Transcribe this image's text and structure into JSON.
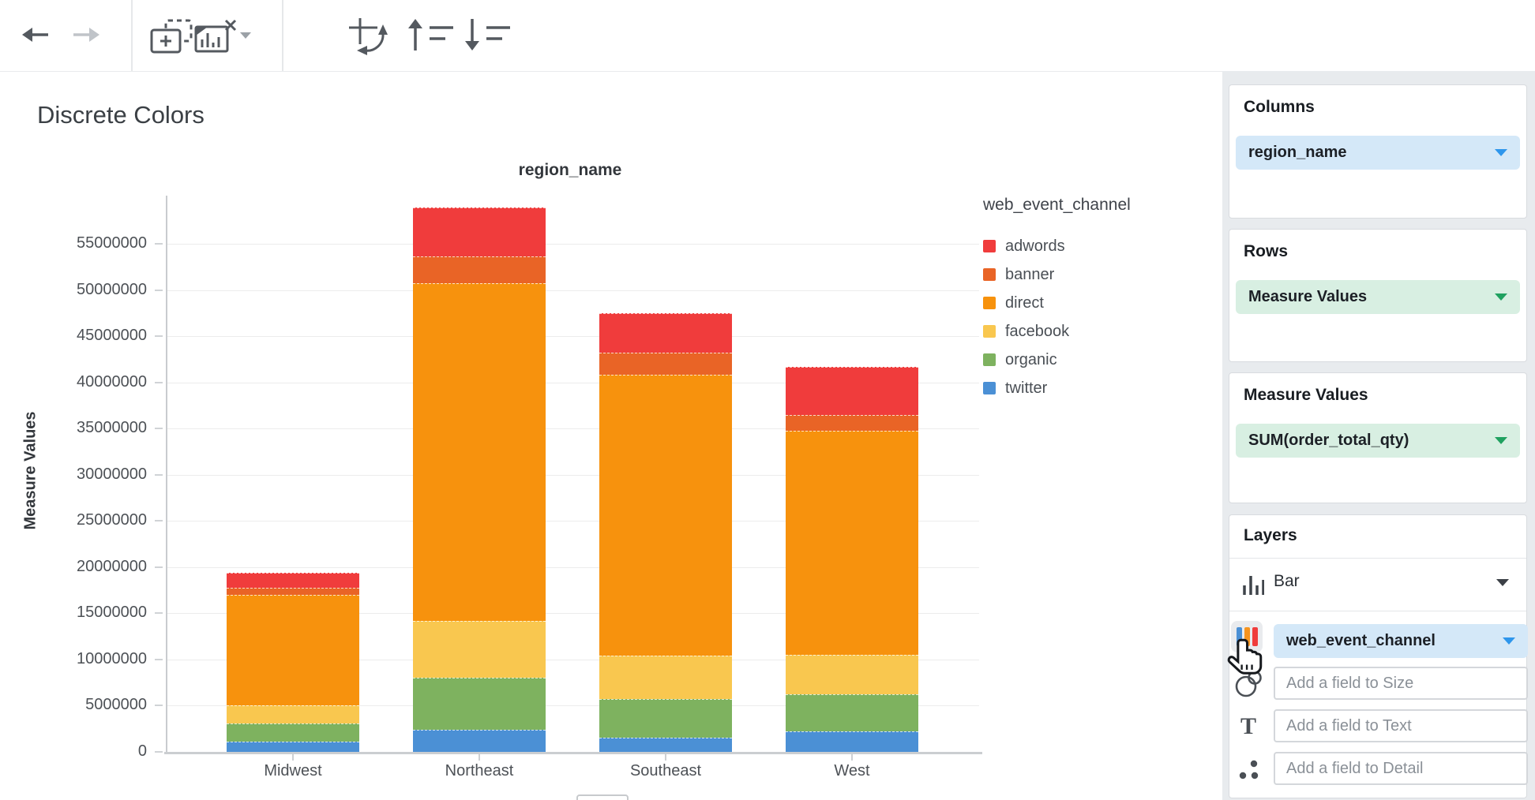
{
  "toolbar": {
    "icons": [
      "back-arrow",
      "forward-arrow",
      "add-chart",
      "remove-chart",
      "remove-chart-caret",
      "swap-axes",
      "sort-ascending",
      "sort-descending"
    ]
  },
  "chart": {
    "title": "Discrete Colors",
    "column_header": "region_name",
    "y_axis_label": "Measure Values"
  },
  "chart_data": {
    "type": "bar",
    "stacked": true,
    "title": "Discrete Colors",
    "xlabel": "region_name",
    "ylabel": "Measure Values",
    "grid": true,
    "legend_position": "right",
    "legend_title": "web_event_channel",
    "legend_order": [
      "adwords",
      "banner",
      "direct",
      "facebook",
      "organic",
      "twitter"
    ],
    "categories": [
      "Midwest",
      "Northeast",
      "Southeast",
      "West"
    ],
    "series": [
      {
        "name": "twitter",
        "color": "#4b90d5",
        "values": [
          1100000,
          2400000,
          1500000,
          2200000
        ]
      },
      {
        "name": "organic",
        "color": "#7eb25f",
        "values": [
          2000000,
          5600000,
          4200000,
          4000000
        ]
      },
      {
        "name": "facebook",
        "color": "#f9c74f",
        "values": [
          1900000,
          6200000,
          4700000,
          4300000
        ]
      },
      {
        "name": "direct",
        "color": "#f7920d",
        "values": [
          12000000,
          36500000,
          30400000,
          24300000
        ]
      },
      {
        "name": "banner",
        "color": "#e96426",
        "values": [
          800000,
          2900000,
          2400000,
          1700000
        ]
      },
      {
        "name": "adwords",
        "color": "#f03c3c",
        "values": [
          1600000,
          5300000,
          4300000,
          5200000
        ]
      }
    ],
    "y_ticks": [
      0,
      5000000,
      10000000,
      15000000,
      20000000,
      25000000,
      30000000,
      35000000,
      40000000,
      45000000,
      50000000,
      55000000
    ],
    "ylim": [
      0,
      60000000
    ]
  },
  "panel": {
    "columns": {
      "header": "Columns",
      "pill": "region_name"
    },
    "rows": {
      "header": "Rows",
      "pill": "Measure Values"
    },
    "measure_values": {
      "header": "Measure Values",
      "pill": "SUM(order_total_qty)"
    },
    "layers": {
      "header": "Layers",
      "layer_type": "Bar",
      "color_field": "web_event_channel",
      "size_placeholder": "Add a field to Size",
      "text_placeholder": "Add a field to Text",
      "detail_placeholder": "Add a field to Detail"
    }
  },
  "colors": {
    "pill_blue_bg": "#d4e8f8",
    "pill_green_bg": "#d8efe2",
    "caret_blue": "#2e96ec",
    "caret_green": "#20a160",
    "panel_bg": "#e8ebee",
    "toolbar_icon": "#54595f",
    "chip_bar_colors": [
      "#4b90d5",
      "#f7941e",
      "#f03c3c"
    ]
  }
}
